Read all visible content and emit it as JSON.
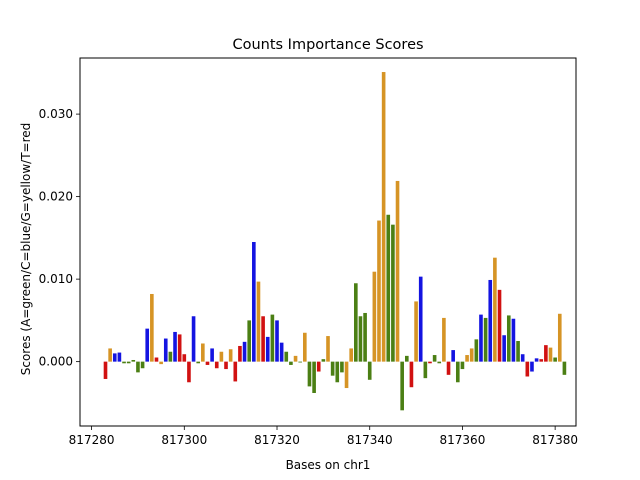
{
  "chart_data": {
    "type": "bar",
    "title": "Counts Importance Scores",
    "xlabel": "Bases on chr1",
    "ylabel": "Scores (A=green/C=blue/G=yellow/T=red",
    "xlim": [
      817277.5,
      817384.5
    ],
    "ylim": [
      -0.0078,
      0.0368
    ],
    "xticks": [
      817280,
      817300,
      817320,
      817340,
      817360,
      817380
    ],
    "xtick_labels": [
      "817280",
      "817300",
      "817320",
      "817340",
      "817360",
      "817380"
    ],
    "yticks": [
      0.0,
      0.01,
      0.02,
      0.03
    ],
    "ytick_labels": [
      "0.000",
      "0.010",
      "0.020",
      "0.030"
    ],
    "grid": false,
    "legend": "none",
    "base_colors": {
      "A": "#4b7f14",
      "C": "#1414e1",
      "G": "#d69425",
      "T": "#d11111"
    },
    "bases": [
      {
        "x": 817283,
        "base": "T",
        "value": -0.0021
      },
      {
        "x": 817284,
        "base": "G",
        "value": 0.0016
      },
      {
        "x": 817285,
        "base": "C",
        "value": 0.001
      },
      {
        "x": 817286,
        "base": "C",
        "value": 0.0011
      },
      {
        "x": 817287,
        "base": "A",
        "value": -0.0002
      },
      {
        "x": 817288,
        "base": "A",
        "value": -0.0002
      },
      {
        "x": 817289,
        "base": "A",
        "value": 0.0002
      },
      {
        "x": 817290,
        "base": "A",
        "value": -0.0013
      },
      {
        "x": 817291,
        "base": "A",
        "value": -0.0008
      },
      {
        "x": 817292,
        "base": "C",
        "value": 0.004
      },
      {
        "x": 817293,
        "base": "G",
        "value": 0.0082
      },
      {
        "x": 817294,
        "base": "T",
        "value": 0.0005
      },
      {
        "x": 817295,
        "base": "G",
        "value": -0.0003
      },
      {
        "x": 817296,
        "base": "C",
        "value": 0.0028
      },
      {
        "x": 817297,
        "base": "A",
        "value": 0.0012
      },
      {
        "x": 817298,
        "base": "C",
        "value": 0.0036
      },
      {
        "x": 817299,
        "base": "T",
        "value": 0.0033
      },
      {
        "x": 817300,
        "base": "T",
        "value": 0.0009
      },
      {
        "x": 817301,
        "base": "T",
        "value": -0.0025
      },
      {
        "x": 817302,
        "base": "C",
        "value": 0.0055
      },
      {
        "x": 817303,
        "base": "A",
        "value": -0.0002
      },
      {
        "x": 817304,
        "base": "G",
        "value": 0.0022
      },
      {
        "x": 817305,
        "base": "T",
        "value": -0.0004
      },
      {
        "x": 817306,
        "base": "C",
        "value": 0.0016
      },
      {
        "x": 817307,
        "base": "T",
        "value": -0.0008
      },
      {
        "x": 817308,
        "base": "G",
        "value": 0.0012
      },
      {
        "x": 817309,
        "base": "T",
        "value": -0.0009
      },
      {
        "x": 817310,
        "base": "G",
        "value": 0.0015
      },
      {
        "x": 817311,
        "base": "T",
        "value": -0.0024
      },
      {
        "x": 817312,
        "base": "T",
        "value": 0.0019
      },
      {
        "x": 817313,
        "base": "C",
        "value": 0.0024
      },
      {
        "x": 817314,
        "base": "A",
        "value": 0.005
      },
      {
        "x": 817315,
        "base": "C",
        "value": 0.0145
      },
      {
        "x": 817316,
        "base": "G",
        "value": 0.0097
      },
      {
        "x": 817317,
        "base": "T",
        "value": 0.0055
      },
      {
        "x": 817318,
        "base": "C",
        "value": 0.003
      },
      {
        "x": 817319,
        "base": "A",
        "value": 0.0057
      },
      {
        "x": 817320,
        "base": "C",
        "value": 0.005
      },
      {
        "x": 817321,
        "base": "C",
        "value": 0.0023
      },
      {
        "x": 817322,
        "base": "A",
        "value": 0.0012
      },
      {
        "x": 817323,
        "base": "A",
        "value": -0.0004
      },
      {
        "x": 817324,
        "base": "G",
        "value": 0.0007
      },
      {
        "x": 817325,
        "base": "A",
        "value": -0.0001
      },
      {
        "x": 817326,
        "base": "G",
        "value": 0.0035
      },
      {
        "x": 817327,
        "base": "A",
        "value": -0.003
      },
      {
        "x": 817328,
        "base": "A",
        "value": -0.0038
      },
      {
        "x": 817329,
        "base": "T",
        "value": -0.0012
      },
      {
        "x": 817330,
        "base": "A",
        "value": 0.0003
      },
      {
        "x": 817331,
        "base": "G",
        "value": 0.0031
      },
      {
        "x": 817332,
        "base": "A",
        "value": -0.0017
      },
      {
        "x": 817333,
        "base": "A",
        "value": -0.0025
      },
      {
        "x": 817334,
        "base": "A",
        "value": -0.0013
      },
      {
        "x": 817335,
        "base": "G",
        "value": -0.0032
      },
      {
        "x": 817336,
        "base": "G",
        "value": 0.0016
      },
      {
        "x": 817337,
        "base": "A",
        "value": 0.0095
      },
      {
        "x": 817338,
        "base": "A",
        "value": 0.0055
      },
      {
        "x": 817339,
        "base": "A",
        "value": 0.0059
      },
      {
        "x": 817340,
        "base": "A",
        "value": -0.0022
      },
      {
        "x": 817341,
        "base": "G",
        "value": 0.0109
      },
      {
        "x": 817342,
        "base": "G",
        "value": 0.0171
      },
      {
        "x": 817343,
        "base": "G",
        "value": 0.0351
      },
      {
        "x": 817344,
        "base": "A",
        "value": 0.0178
      },
      {
        "x": 817345,
        "base": "A",
        "value": 0.0166
      },
      {
        "x": 817346,
        "base": "G",
        "value": 0.0219
      },
      {
        "x": 817347,
        "base": "A",
        "value": -0.0059
      },
      {
        "x": 817348,
        "base": "A",
        "value": 0.0007
      },
      {
        "x": 817349,
        "base": "T",
        "value": -0.0031
      },
      {
        "x": 817350,
        "base": "G",
        "value": 0.0073
      },
      {
        "x": 817351,
        "base": "C",
        "value": 0.0103
      },
      {
        "x": 817352,
        "base": "A",
        "value": -0.002
      },
      {
        "x": 817353,
        "base": "T",
        "value": -0.0002
      },
      {
        "x": 817354,
        "base": "A",
        "value": 0.0008
      },
      {
        "x": 817355,
        "base": "A",
        "value": -0.0002
      },
      {
        "x": 817356,
        "base": "G",
        "value": 0.0053
      },
      {
        "x": 817357,
        "base": "T",
        "value": -0.0016
      },
      {
        "x": 817358,
        "base": "C",
        "value": 0.0014
      },
      {
        "x": 817359,
        "base": "A",
        "value": -0.0025
      },
      {
        "x": 817360,
        "base": "A",
        "value": -0.0009
      },
      {
        "x": 817361,
        "base": "G",
        "value": 0.0008
      },
      {
        "x": 817362,
        "base": "G",
        "value": 0.0016
      },
      {
        "x": 817363,
        "base": "A",
        "value": 0.0027
      },
      {
        "x": 817364,
        "base": "C",
        "value": 0.0057
      },
      {
        "x": 817365,
        "base": "A",
        "value": 0.0053
      },
      {
        "x": 817366,
        "base": "C",
        "value": 0.0099
      },
      {
        "x": 817367,
        "base": "G",
        "value": 0.0126
      },
      {
        "x": 817368,
        "base": "T",
        "value": 0.0087
      },
      {
        "x": 817369,
        "base": "C",
        "value": 0.0032
      },
      {
        "x": 817370,
        "base": "A",
        "value": 0.0056
      },
      {
        "x": 817371,
        "base": "C",
        "value": 0.0052
      },
      {
        "x": 817372,
        "base": "A",
        "value": 0.0025
      },
      {
        "x": 817373,
        "base": "C",
        "value": 0.0009
      },
      {
        "x": 817374,
        "base": "T",
        "value": -0.0018
      },
      {
        "x": 817375,
        "base": "C",
        "value": -0.0012
      },
      {
        "x": 817376,
        "base": "C",
        "value": 0.0004
      },
      {
        "x": 817377,
        "base": "T",
        "value": 0.0003
      },
      {
        "x": 817378,
        "base": "T",
        "value": 0.002
      },
      {
        "x": 817379,
        "base": "G",
        "value": 0.0017
      },
      {
        "x": 817380,
        "base": "A",
        "value": 0.0005
      },
      {
        "x": 817381,
        "base": "G",
        "value": 0.0058
      },
      {
        "x": 817382,
        "base": "A",
        "value": -0.0016
      }
    ]
  }
}
